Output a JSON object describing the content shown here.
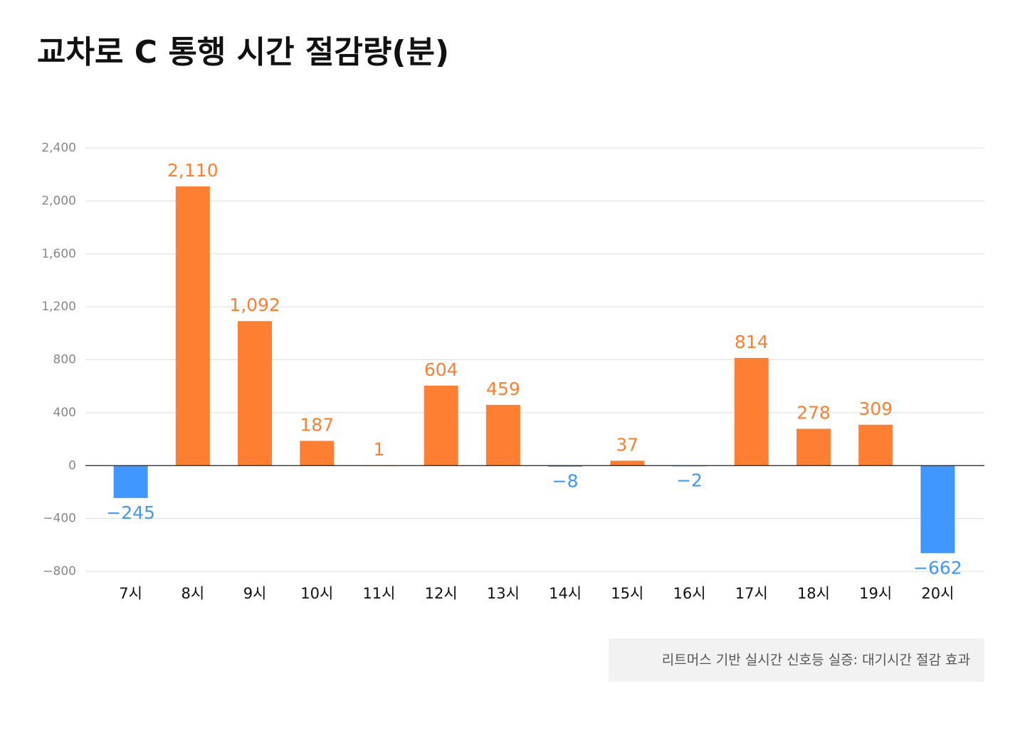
{
  "chart_data": {
    "type": "bar",
    "title": "교차로 C 통행 시간 절감량(분)",
    "categories": [
      "7시",
      "8시",
      "9시",
      "10시",
      "11시",
      "12시",
      "13시",
      "14시",
      "15시",
      "16시",
      "17시",
      "18시",
      "19시",
      "20시"
    ],
    "values": [
      -245,
      2110,
      1092,
      187,
      1,
      604,
      459,
      -8,
      37,
      -2,
      814,
      278,
      309,
      -662
    ],
    "value_labels": [
      "−245",
      "2,110",
      "1,092",
      "187",
      "1",
      "604",
      "459",
      "−8",
      "37",
      "−2",
      "814",
      "278",
      "309",
      "−662"
    ],
    "color": "#ff7f32",
    "negative_color": "#3f97ff",
    "ylim": [
      -800,
      2400
    ],
    "yticks": [
      {
        "value": -800,
        "label": "−800"
      },
      {
        "value": -400,
        "label": "−400"
      },
      0,
      400,
      800,
      {
        "value": 1200,
        "label": "1,200"
      },
      {
        "value": 1600,
        "label": "1,600"
      },
      {
        "value": 2000,
        "label": "2,000"
      },
      {
        "value": 2400,
        "label": "2,400"
      }
    ],
    "grid": true,
    "note": "리트머스 기반 실시간 신호등 실증: 대기시간 절감 효과"
  }
}
